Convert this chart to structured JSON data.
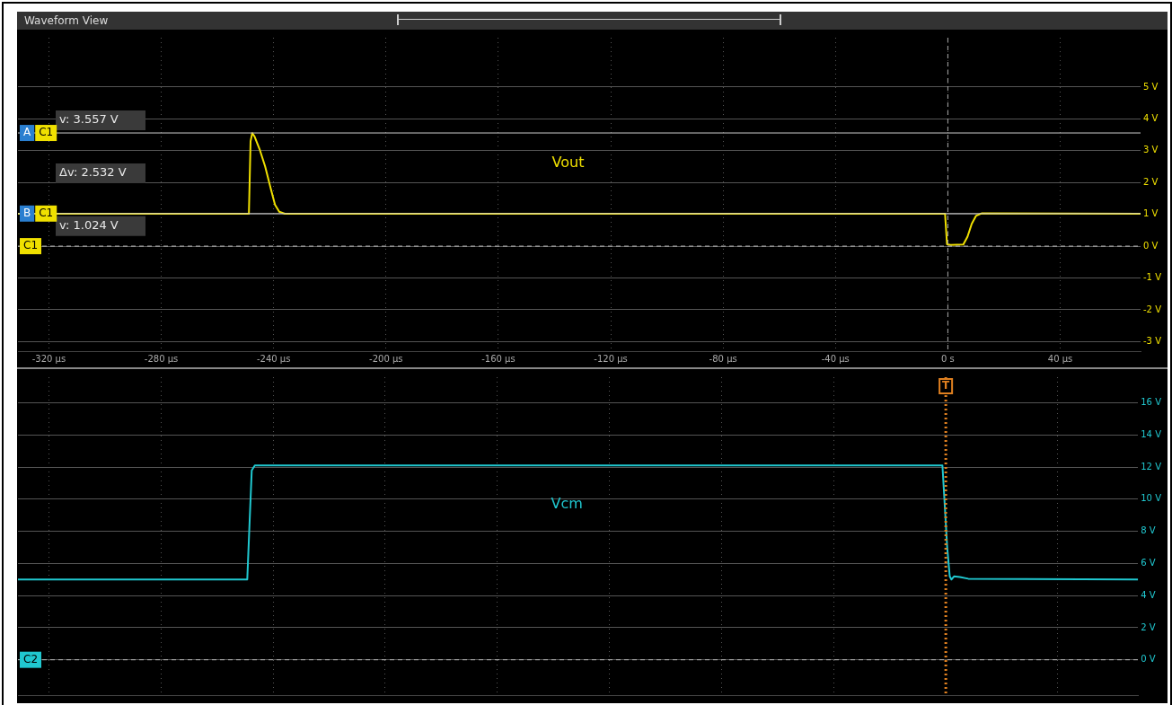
{
  "chart_data": [
    {
      "type": "line",
      "title": "Waveform View",
      "xlim": [
        -331,
        68.6
      ],
      "ylim": [
        -3.3,
        6.55
      ],
      "xticks": [
        {
          "value": -320,
          "label": "-320 µs"
        },
        {
          "value": -280,
          "label": "-280 µs"
        },
        {
          "value": -240,
          "label": "-240 µs"
        },
        {
          "value": -200,
          "label": "-200 µs"
        },
        {
          "value": -160,
          "label": "-160 µs"
        },
        {
          "value": -120,
          "label": "-120 µs"
        },
        {
          "value": -80,
          "label": "-80 µs"
        },
        {
          "value": -40,
          "label": "-40 µs"
        },
        {
          "value": 0,
          "label": "0 s"
        },
        {
          "value": 40,
          "label": "40 µs"
        }
      ],
      "yticks": [
        {
          "value": -3,
          "label": "-3 V"
        },
        {
          "value": -2,
          "label": "-2 V"
        },
        {
          "value": -1,
          "label": "-1 V"
        },
        {
          "value": 0,
          "label": "0 V"
        },
        {
          "value": 1,
          "label": "1 V"
        },
        {
          "value": 2,
          "label": "2 V"
        },
        {
          "value": 3,
          "label": "3 V"
        },
        {
          "value": 4,
          "label": "4 V"
        },
        {
          "value": 5,
          "label": "5 V"
        }
      ],
      "grid": true,
      "marker": "none",
      "line_style": "solid",
      "series": [
        {
          "name": "Vout",
          "color": "#f0e000",
          "x": [
            -331,
            -248.8,
            -248.2,
            -247.6,
            -246.8,
            -245,
            -243,
            -241,
            -239.5,
            -238,
            -236,
            -1,
            -0.3,
            1,
            5.5,
            7,
            8.5,
            10,
            12,
            68.6
          ],
          "values": [
            1.02,
            1.02,
            3.3,
            3.55,
            3.45,
            3.05,
            2.5,
            1.8,
            1.3,
            1.08,
            1.02,
            1.02,
            0.06,
            0.04,
            0.05,
            0.3,
            0.7,
            0.95,
            1.03,
            1.02
          ]
        }
      ],
      "ref_lines": [
        {
          "axis": "y",
          "value": 3.557,
          "label": "v: 3.557 V",
          "color": "#d0d0d0",
          "line_style": "solid"
        },
        {
          "axis": "y",
          "value": 1.024,
          "label": "v: 1.024 V",
          "color": "#d0d0d0",
          "line_style": "solid"
        },
        {
          "axis": "y",
          "value": 0,
          "label": "C1",
          "color": "#bbbbbb",
          "line_style": "dashed"
        },
        {
          "axis": "x",
          "value": 0,
          "color": "#aaaaaa",
          "line_style": "dashed"
        }
      ],
      "annotations": [
        {
          "text": "A",
          "y": 3.557
        },
        {
          "text": "C1",
          "y": 3.557
        },
        {
          "text": "B",
          "y": 1.024
        },
        {
          "text": "C1",
          "y": 1.024
        },
        "Δv: 2.532 V"
      ]
    },
    {
      "type": "line",
      "xlim": [
        -331,
        68.6
      ],
      "ylim": [
        -2.2,
        17.6
      ],
      "tick_labels": "y",
      "xticks": [
        {
          "value": -320,
          "label": null
        },
        {
          "value": -280,
          "label": null
        },
        {
          "value": -240,
          "label": null
        },
        {
          "value": -200,
          "label": null
        },
        {
          "value": -160,
          "label": null
        },
        {
          "value": -120,
          "label": null
        },
        {
          "value": -80,
          "label": null
        },
        {
          "value": -40,
          "label": null
        },
        {
          "value": 0,
          "label": null
        },
        {
          "value": 40,
          "label": null
        }
      ],
      "yticks": [
        {
          "value": 0,
          "label": "0 V"
        },
        {
          "value": 2,
          "label": "2 V"
        },
        {
          "value": 4,
          "label": "4 V"
        },
        {
          "value": 6,
          "label": "6 V"
        },
        {
          "value": 8,
          "label": "8 V"
        },
        {
          "value": 10,
          "label": "10 V"
        },
        {
          "value": 12,
          "label": "12 V"
        },
        {
          "value": 14,
          "label": "14 V"
        },
        {
          "value": 16,
          "label": "16 V"
        }
      ],
      "grid": true,
      "marker": "none",
      "line_style": "solid",
      "series": [
        {
          "name": "Vcm",
          "color": "#20c8d0",
          "x": [
            -331,
            -249.2,
            -248.5,
            -247.6,
            -246.5,
            -1.2,
            -0.5,
            0.5,
            1.4,
            2,
            3,
            5,
            8,
            68.6
          ],
          "values": [
            5.0,
            5.0,
            8,
            11.8,
            12.1,
            12.1,
            10,
            7,
            5.2,
            5.0,
            5.2,
            5.15,
            5.05,
            5.0
          ]
        }
      ],
      "ref_lines": [
        {
          "axis": "y",
          "value": 0,
          "label": "C2",
          "color": "#bbbbbb",
          "line_style": "dashed"
        },
        {
          "axis": "x",
          "value": 0,
          "label": "T",
          "color": "#e08020",
          "line_style": "dotted"
        }
      ]
    }
  ]
}
